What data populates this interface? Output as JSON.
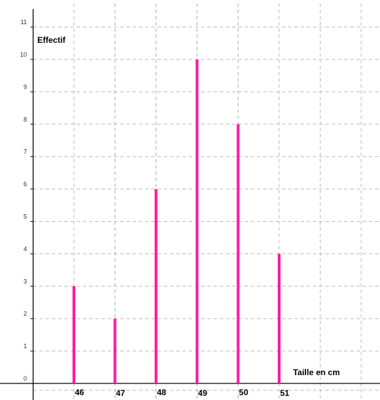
{
  "chart_data": {
    "type": "bar",
    "categories": [
      "46",
      "47",
      "48",
      "49",
      "50",
      "51"
    ],
    "x": [
      46,
      47,
      48,
      49,
      50,
      51
    ],
    "values": [
      3,
      2,
      6,
      10,
      8,
      4
    ],
    "ylabel": "Effectif",
    "xlabel": "Taille en cm",
    "y_ticks": [
      "0",
      "1",
      "2",
      "3",
      "4",
      "5",
      "6",
      "7",
      "8",
      "9",
      "10",
      "11"
    ],
    "ylim": [
      0,
      11.5
    ],
    "xlim": [
      44.75,
      53.25
    ],
    "grid": true,
    "bar_color": "#ff1aa3"
  }
}
